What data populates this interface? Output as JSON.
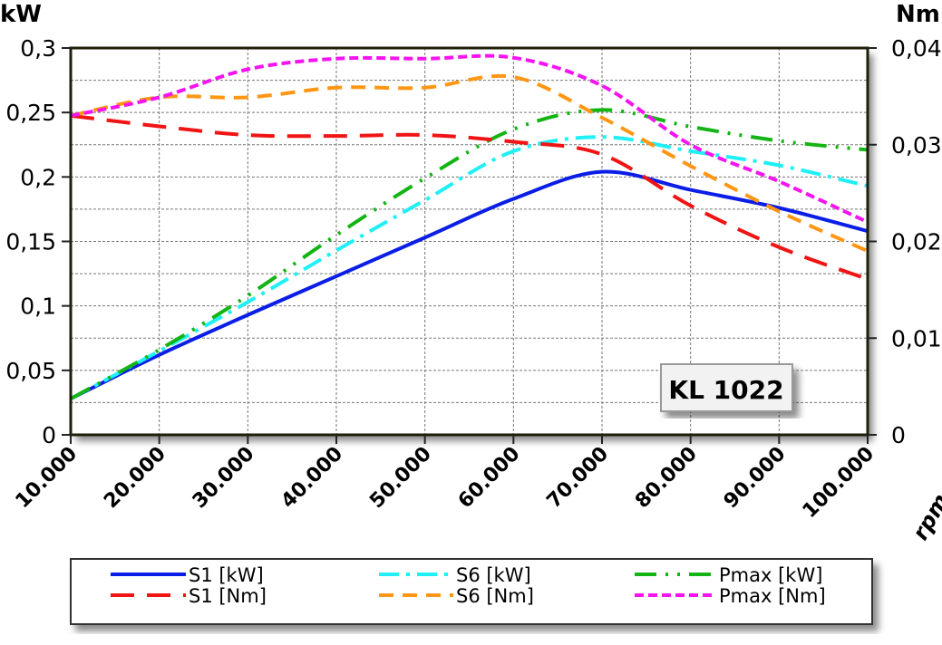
{
  "chart_data": {
    "type": "line",
    "left_axis_label": "kW",
    "right_axis_label": "Nm",
    "xlabel": "rpm",
    "annotation": "KL 1022",
    "x": [
      10000,
      20000,
      30000,
      40000,
      50000,
      60000,
      70000,
      80000,
      90000,
      100000
    ],
    "x_tick_labels": [
      "10.000",
      "20.000",
      "30.000",
      "40.000",
      "50.000",
      "60.000",
      "70.000",
      "80.000",
      "90.000",
      "100.000"
    ],
    "xlim": [
      10000,
      100000
    ],
    "ylim_left": [
      0,
      0.3
    ],
    "ylim_right": [
      0,
      0.04
    ],
    "left_tick_labels": [
      "0",
      "0,05",
      "0,1",
      "0,15",
      "0,2",
      "0,25",
      "0,3"
    ],
    "left_ticks": [
      0,
      0.05,
      0.1,
      0.15,
      0.2,
      0.25,
      0.3
    ],
    "right_tick_labels": [
      "0",
      "0,01",
      "0,02",
      "0,03",
      "0,04"
    ],
    "right_ticks": [
      0,
      0.01,
      0.02,
      0.03,
      0.04
    ],
    "grid": true,
    "legend_placement": "bottom",
    "series": [
      {
        "name": "S1 [kW]",
        "axis": "left",
        "color": "#0a1ee6",
        "style": "solid",
        "values": [
          0.028,
          0.062,
          0.093,
          0.123,
          0.153,
          0.183,
          0.204,
          0.19,
          0.176,
          0.158
        ]
      },
      {
        "name": "S6 [kW]",
        "axis": "left",
        "color": "#1ef0f5",
        "style": "dash-dot",
        "values": [
          0.028,
          0.065,
          0.103,
          0.143,
          0.182,
          0.22,
          0.231,
          0.22,
          0.209,
          0.193
        ]
      },
      {
        "name": "Pmax [kW]",
        "axis": "left",
        "color": "#14b414",
        "style": "dash-dot-dot",
        "values": [
          0.028,
          0.066,
          0.108,
          0.155,
          0.199,
          0.237,
          0.252,
          0.239,
          0.228,
          0.221
        ]
      },
      {
        "name": "S1 [Nm]",
        "axis": "right",
        "color": "#f01414",
        "style": "long-dash",
        "values": [
          0.033,
          0.0319,
          0.031,
          0.0309,
          0.031,
          0.0303,
          0.029,
          0.0237,
          0.0194,
          0.0161
        ]
      },
      {
        "name": "S6 [Nm]",
        "axis": "right",
        "color": "#ff9614",
        "style": "dash",
        "values": [
          0.033,
          0.0349,
          0.0349,
          0.0359,
          0.0359,
          0.037,
          0.0328,
          0.0278,
          0.0231,
          0.019
        ]
      },
      {
        "name": "Pmax [Nm]",
        "axis": "right",
        "color": "#f514f0",
        "style": "short-dash",
        "values": [
          0.033,
          0.0349,
          0.0378,
          0.0389,
          0.0389,
          0.039,
          0.0361,
          0.03,
          0.0262,
          0.022
        ]
      }
    ]
  }
}
